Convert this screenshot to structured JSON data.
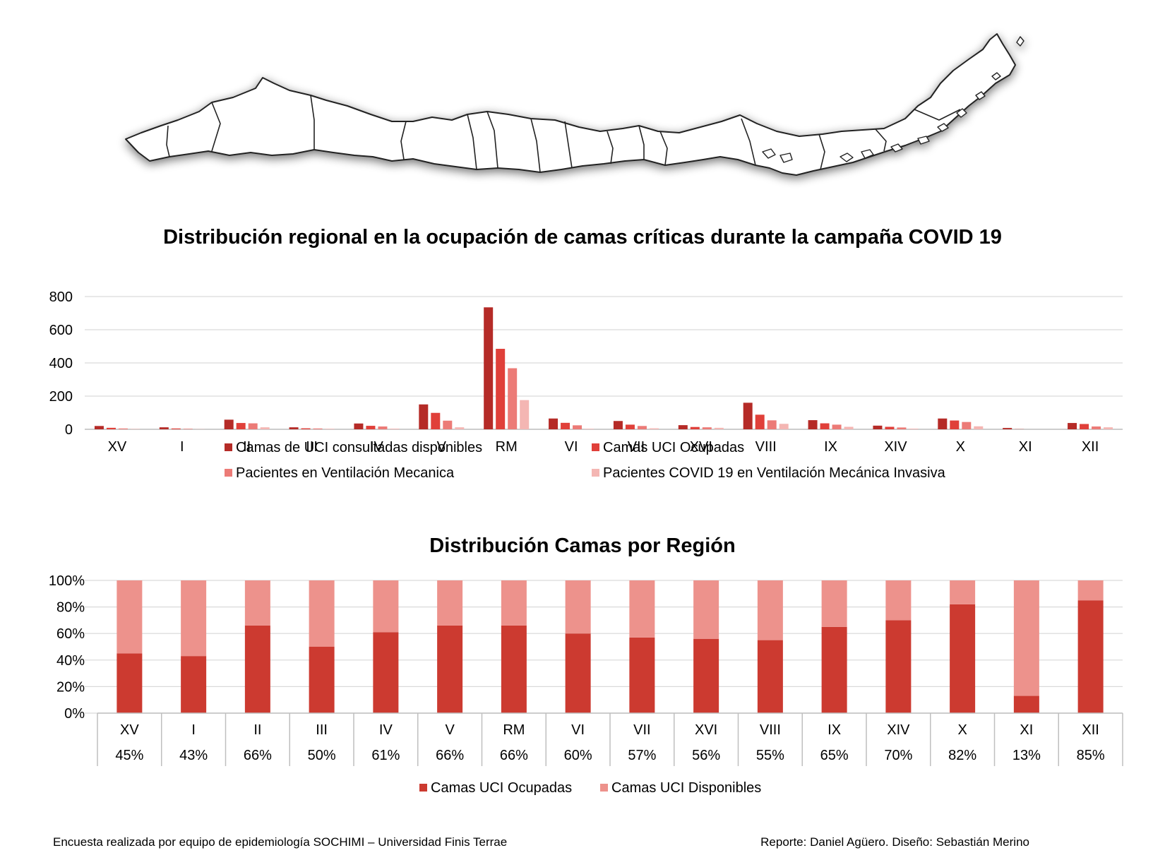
{
  "chart_data": [
    {
      "type": "bar",
      "title": "Distribución regional en la ocupación de camas críticas durante la campaña COVID 19",
      "categories": [
        "XV",
        "I",
        "II",
        "III",
        "IV",
        "V",
        "RM",
        "VI",
        "VII",
        "XVI",
        "VIII",
        "IX",
        "XIV",
        "X",
        "XI",
        "XII"
      ],
      "ylim": [
        0,
        800
      ],
      "yticks": [
        0,
        200,
        400,
        600,
        800
      ],
      "grid": true,
      "legend_position": "bottom",
      "series": [
        {
          "name": "Camas de UCI consultadas disponibles",
          "color": "#b52b27",
          "values": [
            20,
            12,
            58,
            12,
            35,
            150,
            735,
            65,
            50,
            25,
            160,
            55,
            22,
            65,
            8,
            38
          ]
        },
        {
          "name": "Camas UCI Ocupadas",
          "color": "#e0403a",
          "values": [
            9,
            5,
            38,
            6,
            21,
            99,
            485,
            39,
            28,
            14,
            88,
            36,
            15,
            53,
            1,
            32
          ]
        },
        {
          "name": "Pacientes en Ventilación Mecanica",
          "color": "#ec7b77",
          "values": [
            5,
            3,
            36,
            5,
            17,
            52,
            368,
            24,
            20,
            12,
            54,
            28,
            11,
            44,
            0,
            17
          ]
        },
        {
          "name": "Pacientes COVID 19 en Ventilación Mecánica Invasiva",
          "color": "#f4b6b3",
          "values": [
            2,
            1,
            12,
            3,
            4,
            12,
            176,
            3,
            6,
            9,
            33,
            15,
            4,
            18,
            0,
            12
          ]
        }
      ]
    },
    {
      "type": "bar",
      "stacked": "percent",
      "title": "Distribución Camas por Región",
      "categories": [
        "XV",
        "I",
        "II",
        "III",
        "IV",
        "V",
        "RM",
        "VI",
        "VII",
        "XVI",
        "VIII",
        "IX",
        "XIV",
        "X",
        "XI",
        "XII"
      ],
      "ylim": [
        0,
        100
      ],
      "yticks": [
        "0%",
        "20%",
        "40%",
        "60%",
        "80%",
        "100%"
      ],
      "grid": true,
      "legend_position": "bottom",
      "table_values": [
        "45%",
        "43%",
        "66%",
        "50%",
        "61%",
        "66%",
        "66%",
        "60%",
        "57%",
        "56%",
        "55%",
        "65%",
        "70%",
        "82%",
        "13%",
        "85%"
      ],
      "series": [
        {
          "name": "Camas UCI Ocupadas",
          "color": "#cc3a30",
          "values": [
            45,
            43,
            66,
            50,
            61,
            66,
            66,
            60,
            57,
            56,
            55,
            65,
            70,
            82,
            13,
            85
          ]
        },
        {
          "name": "Camas UCI Disponibles",
          "color": "#ed928c",
          "values": [
            55,
            57,
            34,
            50,
            39,
            34,
            34,
            40,
            43,
            44,
            45,
            35,
            30,
            18,
            87,
            15
          ]
        }
      ]
    }
  ],
  "footer": {
    "left": "Encuesta realizada por equipo de epidemiología SOCHIMI – Universidad Finis Terrae",
    "right": "Reporte: Daniel Agüero. Diseño: Sebastián Merino"
  }
}
